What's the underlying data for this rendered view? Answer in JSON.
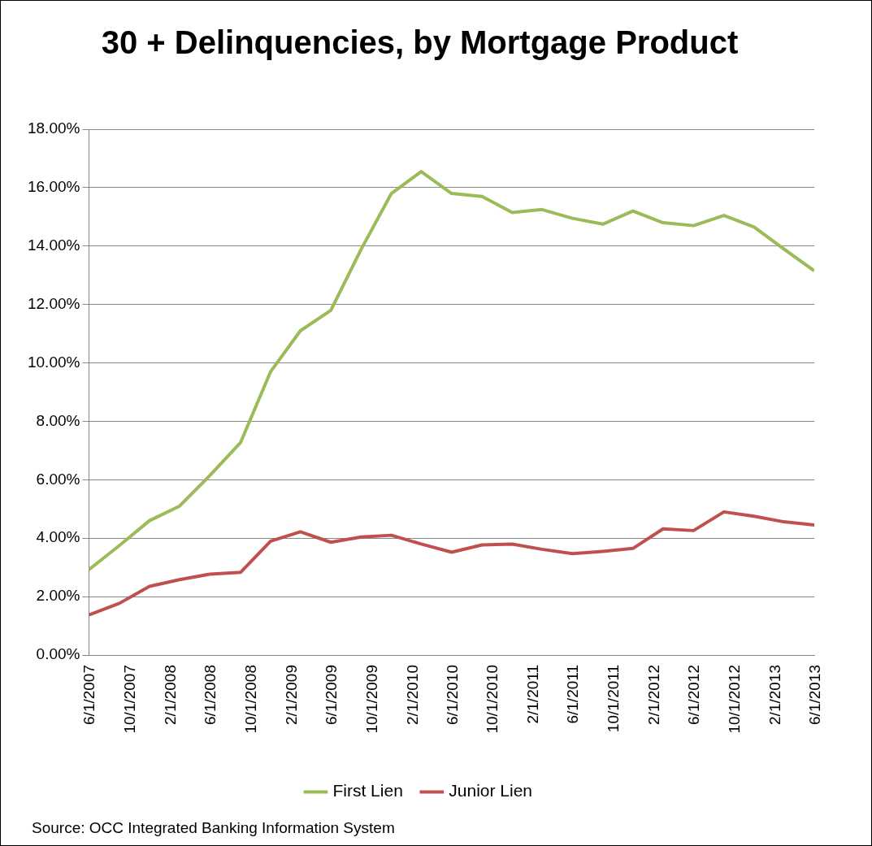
{
  "chart_data": {
    "type": "line",
    "title": "30 + Delinquencies, by Mortgage Product",
    "x": [
      "2007-06-01",
      "2007-09-01",
      "2007-12-01",
      "2008-03-01",
      "2008-06-01",
      "2008-09-01",
      "2008-12-01",
      "2009-03-01",
      "2009-06-01",
      "2009-09-01",
      "2009-12-01",
      "2010-03-01",
      "2010-06-01",
      "2010-09-01",
      "2010-12-01",
      "2011-03-01",
      "2011-06-01",
      "2011-09-01",
      "2011-12-01",
      "2012-03-01",
      "2012-06-01",
      "2012-09-01",
      "2012-12-01",
      "2013-03-01",
      "2013-06-01"
    ],
    "series": [
      {
        "name": "First Lien",
        "color": "#9bbb59",
        "values": [
          2.92,
          3.75,
          4.6,
          5.1,
          6.15,
          7.27,
          9.7,
          11.1,
          11.8,
          13.9,
          15.8,
          16.55,
          15.8,
          15.7,
          15.15,
          15.25,
          14.95,
          14.75,
          15.2,
          14.8,
          14.7,
          15.05,
          14.65,
          13.9,
          13.15
        ]
      },
      {
        "name": "Junior Lien",
        "color": "#c0504d",
        "values": [
          1.37,
          1.77,
          2.35,
          2.58,
          2.77,
          2.83,
          3.9,
          4.22,
          3.86,
          4.04,
          4.1,
          3.8,
          3.52,
          3.77,
          3.8,
          3.62,
          3.47,
          3.55,
          3.65,
          4.32,
          4.26,
          4.9,
          4.75,
          4.56,
          4.45
        ]
      }
    ],
    "xlim": [
      "2007-06-01",
      "2013-06-01"
    ],
    "xticks": [
      {
        "value": "2007-06-01",
        "label": "6/1/2007"
      },
      {
        "value": "2007-10-01",
        "label": "10/1/2007"
      },
      {
        "value": "2008-02-01",
        "label": "2/1/2008"
      },
      {
        "value": "2008-06-01",
        "label": "6/1/2008"
      },
      {
        "value": "2008-10-01",
        "label": "10/1/2008"
      },
      {
        "value": "2009-02-01",
        "label": "2/1/2009"
      },
      {
        "value": "2009-06-01",
        "label": "6/1/2009"
      },
      {
        "value": "2009-10-01",
        "label": "10/1/2009"
      },
      {
        "value": "2010-02-01",
        "label": "2/1/2010"
      },
      {
        "value": "2010-06-01",
        "label": "6/1/2010"
      },
      {
        "value": "2010-10-01",
        "label": "10/1/2010"
      },
      {
        "value": "2011-02-01",
        "label": "2/1/2011"
      },
      {
        "value": "2011-06-01",
        "label": "6/1/2011"
      },
      {
        "value": "2011-10-01",
        "label": "10/1/2011"
      },
      {
        "value": "2012-02-01",
        "label": "2/1/2012"
      },
      {
        "value": "2012-06-01",
        "label": "6/1/2012"
      },
      {
        "value": "2012-10-01",
        "label": "10/1/2012"
      },
      {
        "value": "2013-02-01",
        "label": "2/1/2013"
      },
      {
        "value": "2013-06-01",
        "label": "6/1/2013"
      }
    ],
    "ylim": [
      0,
      18
    ],
    "yticks": [
      {
        "value": 0,
        "label": "0.00%"
      },
      {
        "value": 2,
        "label": "2.00%"
      },
      {
        "value": 4,
        "label": "4.00%"
      },
      {
        "value": 6,
        "label": "6.00%"
      },
      {
        "value": 8,
        "label": "8.00%"
      },
      {
        "value": 10,
        "label": "10.00%"
      },
      {
        "value": 12,
        "label": "12.00%"
      },
      {
        "value": 14,
        "label": "14.00%"
      },
      {
        "value": 16,
        "label": "16.00%"
      },
      {
        "value": 18,
        "label": "18.00%"
      }
    ],
    "grid": "y",
    "legend": "bottom",
    "marker": "none",
    "line_style": "solid",
    "annotations": [
      "Source: OCC Integrated Banking Information System"
    ]
  }
}
